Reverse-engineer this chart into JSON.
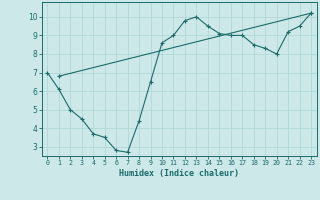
{
  "xlabel": "Humidex (Indice chaleur)",
  "bg_color": "#cce8e8",
  "grid_color": "#b0d8d8",
  "line_color": "#1a6b6b",
  "xlim": [
    -0.5,
    23.5
  ],
  "ylim": [
    2.5,
    10.8
  ],
  "xticks": [
    0,
    1,
    2,
    3,
    4,
    5,
    6,
    7,
    8,
    9,
    10,
    11,
    12,
    13,
    14,
    15,
    16,
    17,
    18,
    19,
    20,
    21,
    22,
    23
  ],
  "yticks": [
    3,
    4,
    5,
    6,
    7,
    8,
    9,
    10
  ],
  "line1_x": [
    0,
    1,
    2,
    3,
    4,
    5,
    6,
    7,
    8,
    9,
    10,
    11,
    12,
    13,
    14,
    15,
    16,
    17,
    18,
    19,
    20,
    21,
    22,
    23
  ],
  "line1_y": [
    7.0,
    6.1,
    5.0,
    4.5,
    3.7,
    3.5,
    2.8,
    2.7,
    4.4,
    6.5,
    8.6,
    9.0,
    9.8,
    10.0,
    9.5,
    9.1,
    9.0,
    9.0,
    8.5,
    8.3,
    8.0,
    9.2,
    9.5,
    10.2
  ],
  "line2_x": [
    1,
    23
  ],
  "line2_y": [
    6.8,
    10.2
  ]
}
